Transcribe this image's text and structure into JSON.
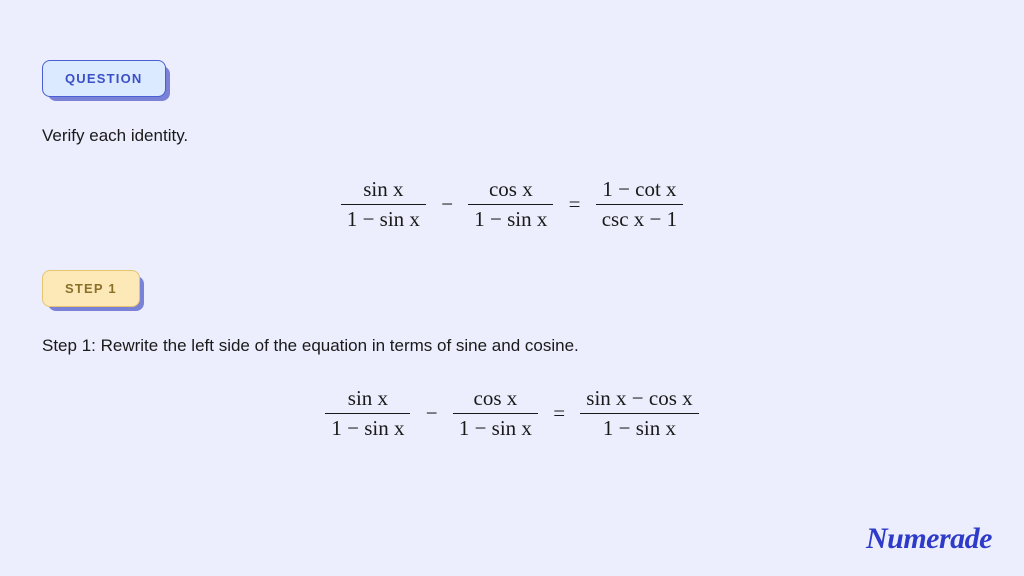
{
  "badges": {
    "question_label": "QUESTION",
    "step1_label": "STEP 1"
  },
  "question": {
    "prompt": "Verify each identity.",
    "eq_lhs_frac1_num": "sin x",
    "eq_lhs_frac1_den": "1 − sin x",
    "eq_lhs_minus": "−",
    "eq_lhs_frac2_num": "cos x",
    "eq_lhs_frac2_den": "1 − sin x",
    "eq_equals": "=",
    "eq_rhs_num": "1 − cot x",
    "eq_rhs_den": "csc x − 1"
  },
  "step1": {
    "prompt": "Step 1: Rewrite the left side of the equation in terms of sine and cosine.",
    "eq_lhs_frac1_num": "sin x",
    "eq_lhs_frac1_den": "1 − sin x",
    "eq_lhs_minus": "−",
    "eq_lhs_frac2_num": "cos x",
    "eq_lhs_frac2_den": "1 − sin x",
    "eq_equals": "=",
    "eq_rhs_num": "sin x − cos x",
    "eq_rhs_den": "1 − sin x"
  },
  "brand": {
    "name": "Numerade"
  },
  "style": {
    "bg": "#eceefd",
    "badge_question_bg": "#dbeafe",
    "badge_question_border": "#4a5fd4",
    "badge_question_text": "#3b4fc7",
    "badge_step_bg": "#fde8b8",
    "badge_step_border": "#e5c570",
    "badge_step_text": "#8a7028",
    "shadow": "#7a82d8",
    "text_color": "#1a1a1a",
    "brand_color": "#2e3bc9",
    "font_body": 17,
    "font_badge": 13,
    "font_eq": 21,
    "font_logo": 30
  }
}
